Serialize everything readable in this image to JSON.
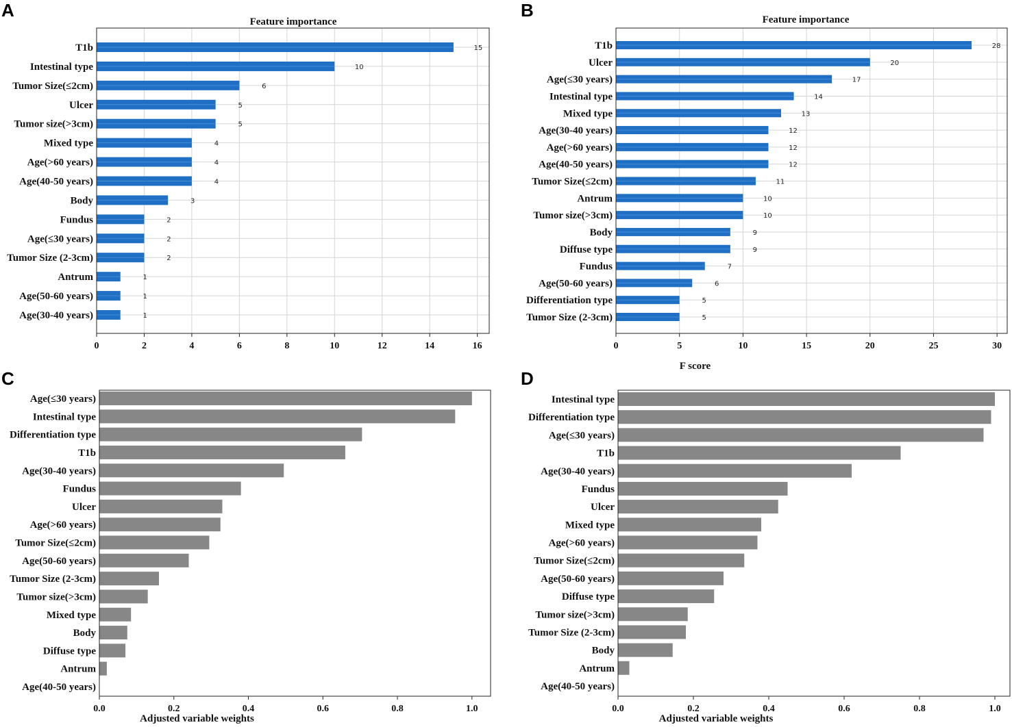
{
  "chart_data": [
    {
      "panel": "A",
      "type": "bar",
      "orientation": "horizontal",
      "title": "Feature importance",
      "xlabel": "",
      "ylabel": "",
      "xlim": [
        0,
        16.5
      ],
      "xticks": [
        0,
        2,
        4,
        6,
        8,
        10,
        12,
        14,
        16
      ],
      "grid": true,
      "data_labels": true,
      "bar_color": "#1f6fc4",
      "categories": [
        "T1b",
        "Intestinal type",
        "Tumor Size(≤2cm)",
        "Ulcer",
        "Tumor size(>3cm)",
        "Mixed type",
        "Age(>60 years)",
        "Age(40-50 years)",
        "Body",
        "Fundus",
        "Age(≤30 years)",
        "Tumor Size (2-3cm)",
        "Antrum",
        "Age(50-60 years)",
        "Age(30-40 years)"
      ],
      "values": [
        15,
        10,
        6,
        5,
        5,
        4,
        4,
        4,
        3,
        2,
        2,
        2,
        1,
        1,
        1
      ]
    },
    {
      "panel": "B",
      "type": "bar",
      "orientation": "horizontal",
      "title": "Feature importance",
      "xlabel": "F score",
      "ylabel": "",
      "xlim": [
        0,
        30.8
      ],
      "xticks": [
        0,
        5,
        10,
        15,
        20,
        25,
        30
      ],
      "grid": true,
      "data_labels": true,
      "bar_color": "#1f6fc4",
      "categories": [
        "T1b",
        "Ulcer",
        "Age(≤30 years)",
        "Intestinal type",
        "Mixed type",
        "Age(30-40 years)",
        "Age(>60 years)",
        "Age(40-50 years)",
        "Tumor Size(≤2cm)",
        "Antrum",
        "Tumor size(>3cm)",
        "Body",
        "Diffuse type",
        "Fundus",
        "Age(50-60 years)",
        "Differentiation type",
        "Tumor Size (2-3cm)"
      ],
      "values": [
        28,
        20,
        17,
        14,
        13,
        12,
        12,
        12,
        11,
        10,
        10,
        9,
        9,
        7,
        6,
        5,
        5
      ]
    },
    {
      "panel": "C",
      "type": "bar",
      "orientation": "horizontal",
      "title": "",
      "xlabel": "Adjusted variable weights",
      "ylabel": "",
      "xlim": [
        0,
        1.05
      ],
      "xticks": [
        "0.0",
        "0.2",
        "0.4",
        "0.6",
        "0.8",
        "1.0"
      ],
      "grid": false,
      "data_labels": false,
      "bar_color": "#878787",
      "categories": [
        "Age(≤30 years)",
        "Intestinal type",
        "Differentiation type",
        "T1b",
        "Age(30-40 years)",
        "Fundus",
        "Ulcer",
        "Age(>60 years)",
        "Tumor Size(≤2cm)",
        "Age(50-60 years)",
        "Tumor Size (2-3cm)",
        "Tumor size(>3cm)",
        "Mixed type",
        "Body",
        "Diffuse type",
        "Antrum",
        "Age(40-50 years)"
      ],
      "values": [
        1.0,
        0.955,
        0.705,
        0.66,
        0.495,
        0.38,
        0.33,
        0.325,
        0.295,
        0.24,
        0.16,
        0.13,
        0.085,
        0.075,
        0.07,
        0.02,
        0.0
      ]
    },
    {
      "panel": "D",
      "type": "bar",
      "orientation": "horizontal",
      "title": "",
      "xlabel": "Adjusted variable weights",
      "ylabel": "",
      "xlim": [
        0,
        1.04
      ],
      "xticks": [
        "0.0",
        "0.2",
        "0.4",
        "0.6",
        "0.8",
        "1.0"
      ],
      "grid": false,
      "data_labels": false,
      "bar_color": "#878787",
      "categories": [
        "Intestinal type",
        "Differentiation type",
        "Age(≤30 years)",
        "T1b",
        "Age(30-40 years)",
        "Fundus",
        "Ulcer",
        "Mixed type",
        "Age(>60 years)",
        "Tumor Size(≤2cm)",
        "Age(50-60 years)",
        "Diffuse type",
        "Tumor size(>3cm)",
        "Tumor Size (2-3cm)",
        "Body",
        "Antrum",
        "Age(40-50 years)"
      ],
      "values": [
        1.0,
        0.99,
        0.97,
        0.75,
        0.62,
        0.45,
        0.425,
        0.38,
        0.37,
        0.335,
        0.28,
        0.255,
        0.185,
        0.18,
        0.145,
        0.03,
        0.0
      ]
    }
  ]
}
